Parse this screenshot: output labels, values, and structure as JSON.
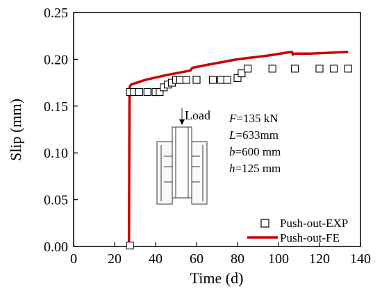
{
  "chart_data": {
    "type": "line",
    "xlabel": "Time (d)",
    "ylabel": "Slip (mm)",
    "xlim": [
      0,
      140
    ],
    "ylim": [
      0,
      0.25
    ],
    "xticks": [
      "0",
      "20",
      "40",
      "60",
      "80",
      "100",
      "120",
      "140"
    ],
    "yticks": [
      "0.00",
      "0.05",
      "0.10",
      "0.15",
      "0.20",
      "0.25"
    ],
    "grid": false,
    "legend_position": "bottom-right",
    "series": [
      {
        "name": "Push-out-EXP",
        "style": "scatter",
        "marker": "open-square",
        "color": "#000000",
        "x": [
          27.5,
          27.5,
          29.5,
          32,
          36,
          40,
          42,
          44,
          46,
          48,
          50,
          52,
          55,
          60,
          68,
          72,
          75,
          80,
          82,
          85,
          97,
          108,
          120,
          127,
          134
        ],
        "y": [
          0.001,
          0.165,
          0.165,
          0.165,
          0.165,
          0.165,
          0.165,
          0.17,
          0.173,
          0.175,
          0.178,
          0.178,
          0.178,
          0.178,
          0.178,
          0.178,
          0.178,
          0.18,
          0.185,
          0.19,
          0.19,
          0.19,
          0.19,
          0.19,
          0.19
        ]
      },
      {
        "name": "Push-out-FE",
        "style": "line",
        "color": "#cc0000",
        "x": [
          27,
          27.3,
          28,
          35,
          45,
          57,
          58,
          65,
          80,
          95,
          106.5,
          107,
          107.3,
          115,
          125,
          134
        ],
        "y": [
          0.0,
          0.17,
          0.173,
          0.178,
          0.183,
          0.188,
          0.191,
          0.194,
          0.2,
          0.204,
          0.208,
          0.205,
          0.206,
          0.206,
          0.207,
          0.208
        ]
      }
    ]
  },
  "annotation": {
    "load": "Load",
    "lines": [
      {
        "var": "F",
        "value": "=135 kN"
      },
      {
        "var": "L",
        "value": "=633mm"
      },
      {
        "var": "b",
        "value": "=600 mm"
      },
      {
        "var": "h",
        "value": "=125 mm"
      }
    ]
  }
}
